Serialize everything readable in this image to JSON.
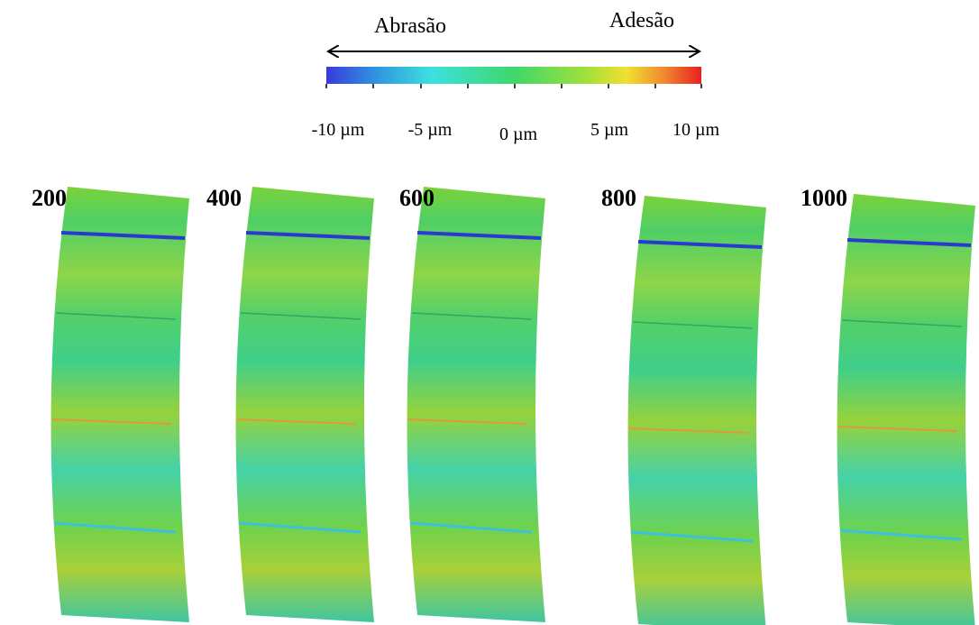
{
  "scale": {
    "left_label": "Abrasão",
    "right_label": "Adesão",
    "ticks": [
      "-10 µm",
      "-5 µm",
      "0 µm",
      "5 µm",
      "10 µm"
    ]
  },
  "panels": [
    {
      "label": "200"
    },
    {
      "label": "400"
    },
    {
      "label": "600"
    },
    {
      "label": "800"
    },
    {
      "label": "1000"
    }
  ]
}
